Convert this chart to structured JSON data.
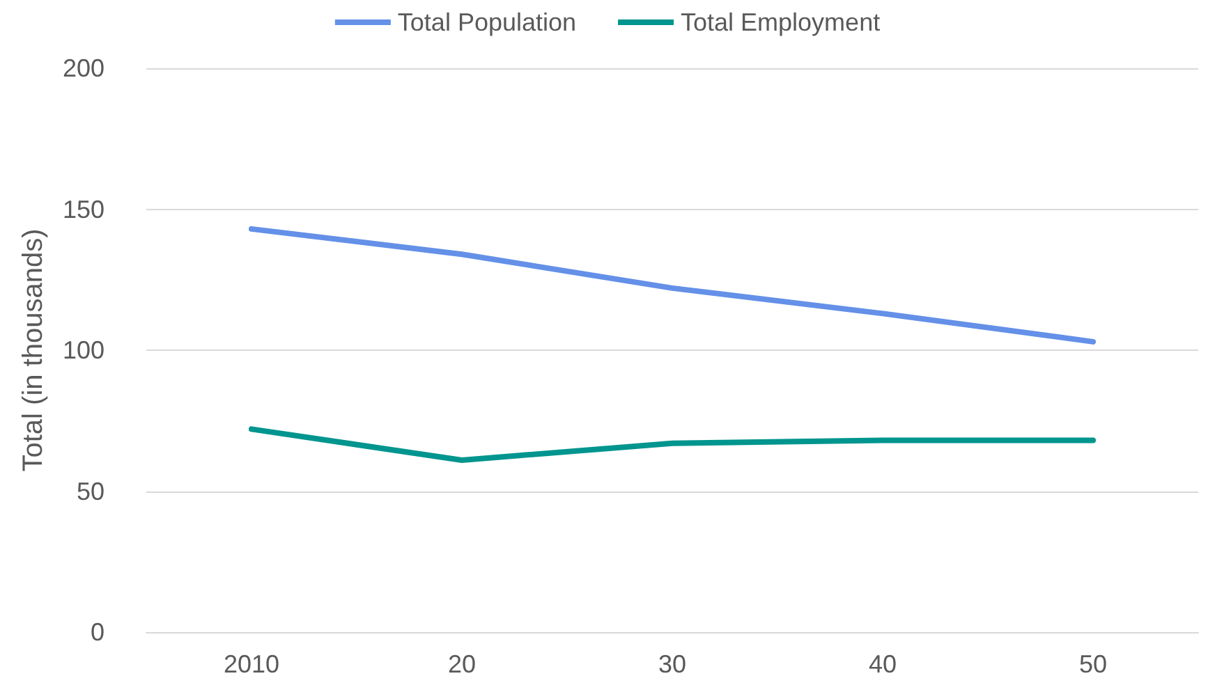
{
  "chart_data": {
    "type": "line",
    "ylabel": "Total (in thousands)",
    "categories": [
      "2010",
      "20",
      "30",
      "40",
      "50"
    ],
    "series": [
      {
        "name": "Total Population",
        "color": "#6490e8",
        "values": [
          143,
          134,
          122,
          113,
          103
        ]
      },
      {
        "name": "Total Employment",
        "color": "#00958e",
        "values": [
          72,
          61,
          67,
          68,
          68
        ]
      }
    ],
    "ylim": [
      0,
      200
    ],
    "yticks": [
      0,
      50,
      100,
      150,
      200
    ],
    "grid": "y",
    "legend": "top",
    "marker": "none",
    "line_style": "solid"
  }
}
